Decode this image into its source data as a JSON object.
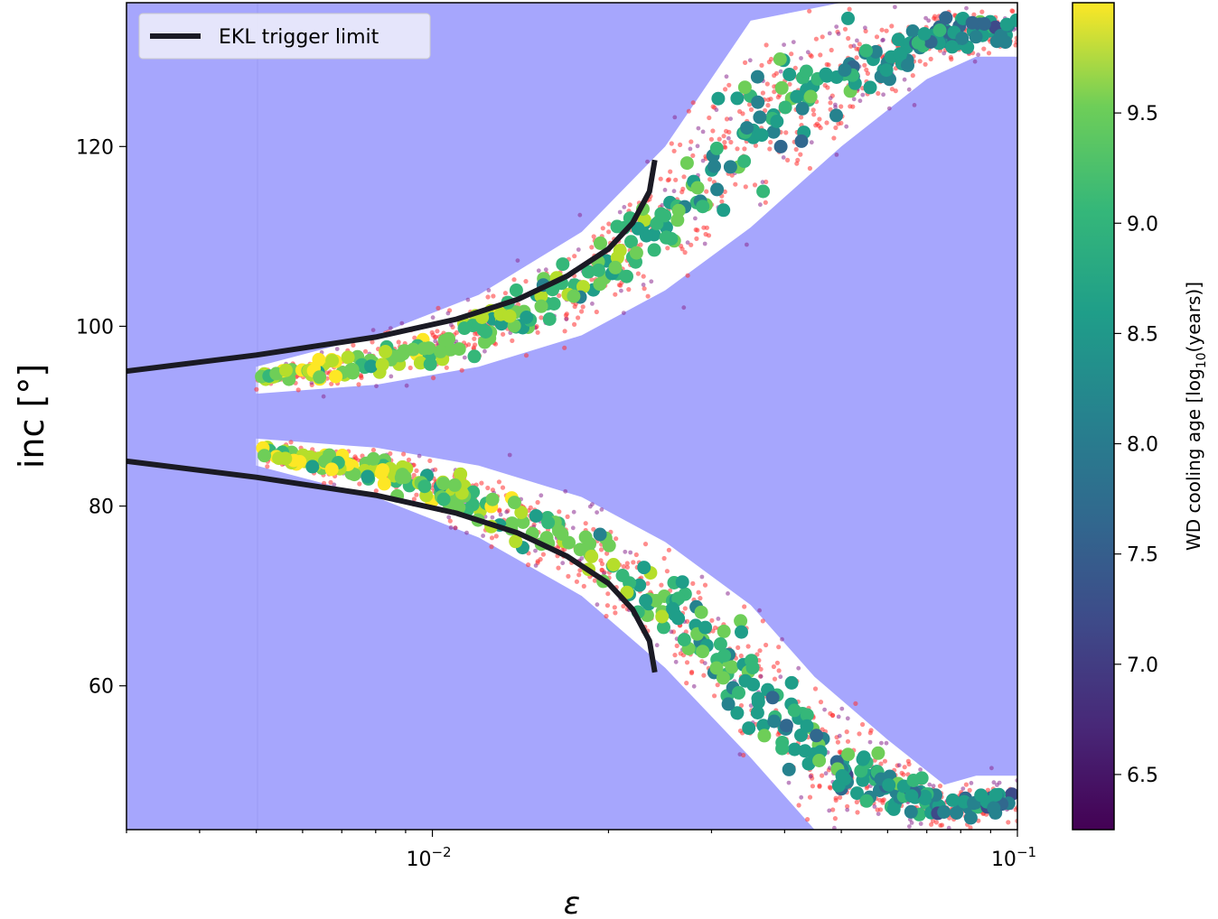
{
  "chart_data": {
    "type": "scatter",
    "xscale": "log",
    "xlim": [
      0.003,
      0.1
    ],
    "ylim": [
      44,
      136
    ],
    "xlabel": "ε",
    "ylabel": "inc [°]",
    "x_ticks": [
      {
        "value": 0.01,
        "base": "10",
        "exp": "−2"
      },
      {
        "value": 0.1,
        "base": "10",
        "exp": "−1"
      }
    ],
    "y_ticks": [
      {
        "value": 60,
        "label": "60"
      },
      {
        "value": 80,
        "label": "80"
      },
      {
        "value": 100,
        "label": "100"
      },
      {
        "value": 120,
        "label": "120"
      }
    ],
    "background_color": "#a6a6fd",
    "allowed_region_color": "#ffffff",
    "legend": {
      "label": "EKL trigger limit",
      "placement": "top-left"
    },
    "ekl_curve": {
      "color": "#1a1a24",
      "upper": [
        [
          0.003,
          95.0
        ],
        [
          0.005,
          96.8
        ],
        [
          0.008,
          98.8
        ],
        [
          0.011,
          100.8
        ],
        [
          0.014,
          103.0
        ],
        [
          0.017,
          105.6
        ],
        [
          0.02,
          108.6
        ],
        [
          0.022,
          111.5
        ],
        [
          0.0235,
          115.0
        ],
        [
          0.024,
          118.5
        ]
      ],
      "lower": [
        [
          0.003,
          85.0
        ],
        [
          0.005,
          83.2
        ],
        [
          0.008,
          81.2
        ],
        [
          0.011,
          79.2
        ],
        [
          0.014,
          77.0
        ],
        [
          0.017,
          74.4
        ],
        [
          0.02,
          71.4
        ],
        [
          0.022,
          68.5
        ],
        [
          0.0235,
          65.0
        ],
        [
          0.024,
          61.5
        ]
      ]
    },
    "allowed_band": {
      "upper_branch": {
        "x": [
          0.005,
          0.008,
          0.012,
          0.018,
          0.025,
          0.035,
          0.05,
          0.07,
          0.085,
          0.1
        ],
        "lo": [
          92.5,
          93.5,
          95.5,
          99.0,
          104.0,
          111.0,
          120.0,
          127.5,
          130.0,
          130.0
        ],
        "hi": [
          95.5,
          99.0,
          103.5,
          110.5,
          120.0,
          134.0,
          136.0,
          136.0,
          136.0,
          136.0
        ]
      },
      "lower_branch": {
        "x": [
          0.005,
          0.008,
          0.012,
          0.018,
          0.025,
          0.035,
          0.045,
          0.06,
          0.075,
          0.085,
          0.1
        ],
        "lo": [
          84.5,
          81.0,
          76.5,
          70.0,
          62.0,
          52.0,
          44.0,
          44.0,
          44.0,
          44.0,
          44.0
        ],
        "hi": [
          87.5,
          86.5,
          84.5,
          81.0,
          76.0,
          69.0,
          61.0,
          54.0,
          49.0,
          50.0,
          50.0
        ]
      }
    },
    "series": [
      {
        "role": "red-population",
        "color": "#ff2f2f",
        "count": 1400
      },
      {
        "role": "purple-population",
        "color": "#8a2a8f",
        "count": 350
      },
      {
        "role": "cooling-age-points",
        "count": 620
      }
    ],
    "colorbar": {
      "label": "WD cooling age [log10(years)]",
      "label_main": "WD cooling age [log",
      "label_sub": "10",
      "label_tail": "(years)]",
      "range": [
        6.25,
        10.0
      ],
      "ticks": [
        "6.5",
        "7.0",
        "7.5",
        "8.0",
        "8.5",
        "9.0",
        "9.5"
      ],
      "colormap": "viridis"
    }
  }
}
